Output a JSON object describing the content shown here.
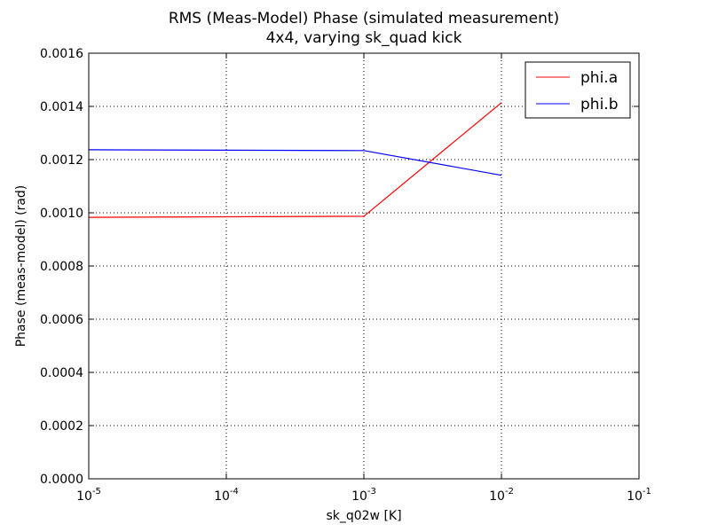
{
  "chart_data": {
    "type": "line",
    "title": "RMS (Meas-Model) Phase (simulated measurement)",
    "subtitle": "4x4, varying sk_quad kick",
    "xlabel": "sk_q02w [K]",
    "ylabel": "Phase (meas-model) (rad)",
    "xscale": "log",
    "xlim": [
      1e-05,
      0.1
    ],
    "ylim": [
      0.0,
      0.0016
    ],
    "x_ticks": [
      {
        "base": "10",
        "exp": "-5"
      },
      {
        "base": "10",
        "exp": "-4"
      },
      {
        "base": "10",
        "exp": "-3"
      },
      {
        "base": "10",
        "exp": "-2"
      },
      {
        "base": "10",
        "exp": "-1"
      }
    ],
    "y_ticks": [
      "0.0000",
      "0.0002",
      "0.0004",
      "0.0006",
      "0.0008",
      "0.0010",
      "0.0012",
      "0.0014",
      "0.0016"
    ],
    "grid": true,
    "legend_position": "top-right",
    "x": [
      1e-05,
      0.001,
      0.01
    ],
    "series": [
      {
        "name": "phi.a",
        "color": "#ff0000",
        "values": [
          0.000983,
          0.000987,
          0.001414
        ]
      },
      {
        "name": "phi.b",
        "color": "#0000ff",
        "values": [
          0.001237,
          0.001234,
          0.001141
        ]
      }
    ]
  }
}
